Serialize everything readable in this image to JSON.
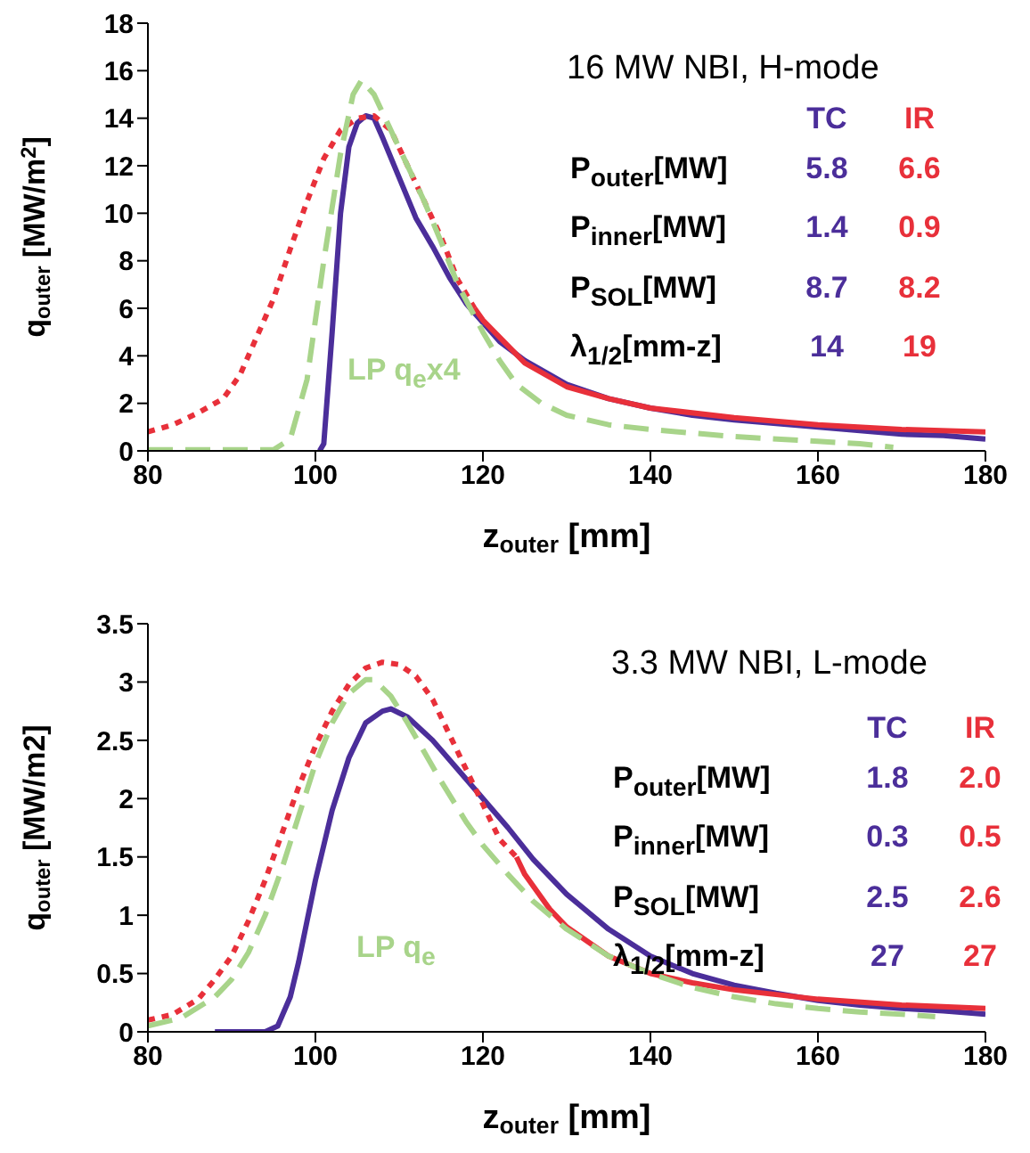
{
  "chart_data": [
    {
      "type": "line",
      "xlabel": "z$_{outer}$ [mm]",
      "ylabel": "q$_{outer}$ [MW/m$^{2}$]",
      "xlim": [
        80,
        180
      ],
      "xticks": [
        80,
        100,
        120,
        140,
        160,
        180
      ],
      "ylim": [
        0,
        18
      ],
      "yticks": [
        0,
        2,
        4,
        6,
        8,
        10,
        12,
        14,
        16,
        18
      ],
      "annotations": [
        "16 MW NBI, H-mode",
        "P$_{outer}$[MW]",
        "5.8",
        "6.6",
        "P$_{inner}$[MW]",
        "1.4",
        "0.9",
        "P$_{SOL}$[MW]",
        "8.7",
        "8.2",
        "λ$_{1/2}$[mm-z]",
        "14",
        "19"
      ],
      "series": [
        {
          "name": "TC",
          "color": "#4b2e9a",
          "line_style": "solid",
          "x": [
            100.5,
            101,
            102,
            103,
            104,
            105,
            106,
            107,
            108,
            110,
            112,
            114,
            116,
            118,
            120,
            122,
            125,
            128,
            130,
            135,
            140,
            145,
            150,
            155,
            160,
            165,
            170,
            175,
            180
          ],
          "values": [
            0,
            0.3,
            5,
            10,
            12.8,
            13.8,
            14.1,
            14,
            13.2,
            11.5,
            9.8,
            8.6,
            7.3,
            6.2,
            5.4,
            4.6,
            3.8,
            3.2,
            2.8,
            2.2,
            1.8,
            1.5,
            1.3,
            1.15,
            1,
            0.85,
            0.7,
            0.65,
            0.5
          ]
        },
        {
          "name": "IR",
          "color": "#e8303a",
          "line_style": "dotted",
          "x": [
            80,
            83,
            86,
            89,
            91,
            93,
            95,
            97,
            99,
            101,
            103,
            105,
            107,
            109,
            111,
            113,
            115,
            117,
            119
          ],
          "values": [
            0.8,
            1.1,
            1.6,
            2.2,
            3.2,
            4.8,
            6.4,
            8.5,
            10.5,
            12.3,
            13.5,
            14,
            14.1,
            13.5,
            12,
            10.5,
            9,
            7.2,
            6
          ]
        },
        {
          "color": "#e8303a",
          "line_style": "solid",
          "x": [
            119,
            120,
            125,
            130,
            135,
            140,
            150,
            160,
            170,
            180
          ],
          "values": [
            6,
            5.5,
            3.7,
            2.7,
            2.2,
            1.8,
            1.4,
            1.1,
            0.9,
            0.8
          ]
        },
        {
          "name": "LP q$_{e}$x4",
          "color": "#a8d48a",
          "line_style": "dashed",
          "x": [
            80,
            90,
            95,
            97,
            99,
            101,
            103,
            104.5,
            105.5,
            107,
            109,
            111,
            113,
            115,
            117,
            120,
            122,
            124,
            127,
            130,
            135,
            140,
            150,
            160,
            165,
            169
          ],
          "values": [
            0.05,
            0.05,
            0.05,
            0.5,
            3,
            8,
            12.5,
            15,
            15.6,
            15,
            13.5,
            12,
            10.5,
            8.8,
            7,
            5,
            3.8,
            2.8,
            2,
            1.5,
            1.1,
            0.9,
            0.6,
            0.4,
            0.3,
            0.15
          ]
        }
      ]
    },
    {
      "type": "line",
      "xlabel": "z$_{outer}$ [mm]",
      "ylabel": "q$_{outer}$ [MW/m2]",
      "xlim": [
        80,
        180
      ],
      "xticks": [
        80,
        100,
        120,
        140,
        160,
        180
      ],
      "ylim": [
        0,
        3.5
      ],
      "yticks": [
        0,
        0.5,
        1,
        1.5,
        2,
        2.5,
        3,
        3.5
      ],
      "annotations": [
        "3.3 MW NBI, L-mode",
        "P$_{outer}$[MW]",
        "1.8",
        "2.0",
        "P$_{inner}$[MW]",
        "0.3",
        "0.5",
        "P$_{SOL}$[MW]",
        "2.5",
        "2.6",
        "λ$_{1/2}$[mm-z]",
        "27",
        "27"
      ],
      "series": [
        {
          "name": "TC",
          "color": "#4b2e9a",
          "line_style": "solid",
          "x": [
            88,
            94,
            95.5,
            97,
            98,
            99,
            100,
            102,
            104,
            106,
            108,
            109,
            111,
            114,
            117,
            120,
            123,
            126,
            130,
            135,
            140,
            145,
            150,
            155,
            160,
            165,
            170,
            175,
            180
          ],
          "values": [
            0,
            0,
            0.05,
            0.3,
            0.6,
            0.95,
            1.3,
            1.9,
            2.35,
            2.65,
            2.75,
            2.77,
            2.7,
            2.5,
            2.25,
            2,
            1.75,
            1.48,
            1.18,
            0.88,
            0.65,
            0.5,
            0.4,
            0.33,
            0.27,
            0.23,
            0.2,
            0.18,
            0.15
          ]
        },
        {
          "name": "IR",
          "color": "#e8303a",
          "line_style": "dotted",
          "x": [
            80,
            83,
            86,
            88,
            90,
            92,
            94,
            96,
            98,
            100,
            102,
            104,
            106,
            108,
            110,
            112,
            114,
            116,
            118,
            120,
            122,
            124
          ],
          "values": [
            0.1,
            0.15,
            0.28,
            0.45,
            0.65,
            0.95,
            1.3,
            1.7,
            2.1,
            2.45,
            2.75,
            2.98,
            3.12,
            3.17,
            3.15,
            3.05,
            2.85,
            2.55,
            2.25,
            1.95,
            1.65,
            1.5
          ]
        },
        {
          "color": "#e8303a",
          "line_style": "solid",
          "x": [
            124,
            125,
            128,
            130,
            135,
            140,
            145,
            150,
            155,
            160,
            170,
            180
          ],
          "values": [
            1.5,
            1.35,
            1.05,
            0.9,
            0.65,
            0.5,
            0.42,
            0.36,
            0.32,
            0.28,
            0.23,
            0.2
          ]
        },
        {
          "name": "LP q$_{e}$",
          "color": "#a8d48a",
          "line_style": "dashed",
          "x": [
            80,
            84,
            88,
            90,
            92,
            94,
            96,
            98,
            100,
            102,
            104,
            106,
            107,
            109,
            111,
            113,
            115,
            118,
            120,
            123,
            126,
            130,
            135,
            140,
            145,
            150,
            155,
            160,
            165,
            170,
            174
          ],
          "values": [
            0.05,
            0.12,
            0.3,
            0.45,
            0.68,
            1,
            1.4,
            1.85,
            2.3,
            2.65,
            2.9,
            3.02,
            3.02,
            2.88,
            2.65,
            2.4,
            2.15,
            1.8,
            1.6,
            1.35,
            1.12,
            0.88,
            0.65,
            0.5,
            0.38,
            0.3,
            0.24,
            0.2,
            0.17,
            0.15,
            0.13
          ]
        }
      ]
    }
  ]
}
